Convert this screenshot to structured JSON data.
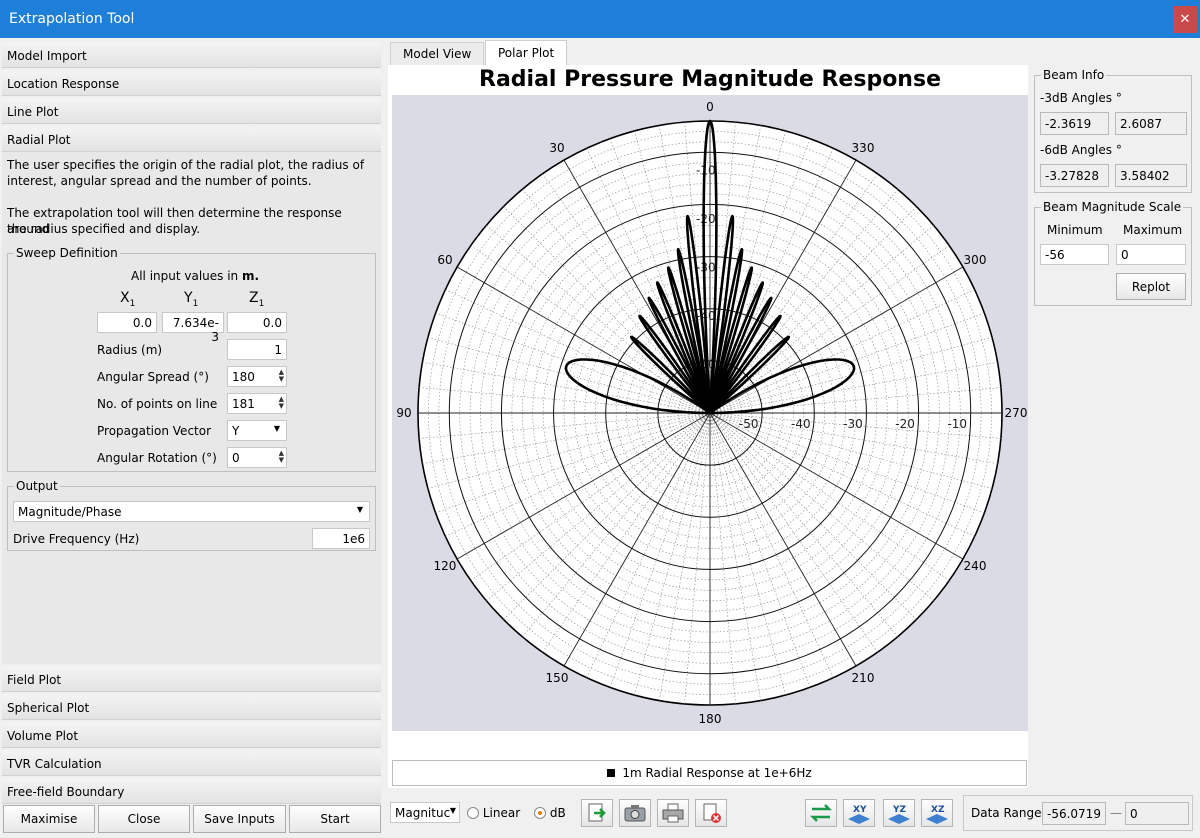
{
  "window": {
    "title": "Extrapolation Tool",
    "close_glyph": "✕"
  },
  "left": {
    "sections": [
      "Model Import",
      "Location Response",
      "Line Plot",
      "Radial Plot"
    ],
    "sections_bottom": [
      "Field Plot",
      "Spherical Plot",
      "Volume Plot",
      "TVR Calculation",
      "Free-field Boundary"
    ],
    "description_1a": "The user specifies the origin of the radial plot, the radius of",
    "description_1b": "interest, angular spread and the number of points.",
    "description_2a": "The extrapolation tool will then determine the response around",
    "description_2b": "the radius specified and display.",
    "sweep": {
      "legend": "Sweep Definition",
      "units_note_prefix": "All input values in ",
      "units_note_unit": "m.",
      "x_label": "X",
      "y_label": "Y",
      "z_label": "Z",
      "sub": "1",
      "x_value": "0.0",
      "y_value": "7.634e-3",
      "z_value": "0.0",
      "radius_label": "Radius (m)",
      "radius_value": "1",
      "spread_label": "Angular Spread (°)",
      "spread_value": "180",
      "points_label": "No. of points on line",
      "points_value": "181",
      "prop_label": "Propagation Vector",
      "prop_value": "Y",
      "rotation_label": "Angular Rotation (°)",
      "rotation_value": "0"
    },
    "output": {
      "legend": "Output",
      "mode_value": "Magnitude/Phase",
      "freq_label": "Drive Frequency (Hz)",
      "freq_value": "1e6"
    },
    "buttons": {
      "maximise": "Maximise",
      "close": "Close",
      "save": "Save Inputs",
      "start": "Start"
    }
  },
  "tabs": [
    "Model View",
    "Polar Plot"
  ],
  "active_tab": "Polar Plot",
  "chart_data": {
    "type": "polar-line",
    "title": "Radial Pressure Magnitude Response",
    "angle_ticks": [
      "0",
      "30",
      "60",
      "90",
      "120",
      "150",
      "180",
      "210",
      "240",
      "270",
      "300",
      "330"
    ],
    "radial_ticks_vertical": [
      "-10",
      "-20",
      "-30",
      "-40",
      "-50"
    ],
    "radial_ticks_horizontal": [
      "-50",
      "-40",
      "-30",
      "-20",
      "-10"
    ],
    "r_range_db": [
      -56,
      0
    ],
    "series_name": "1m Radial Response at 1e+6Hz",
    "series_color": "#000000",
    "background_color": "#dbdbe6",
    "lobes": [
      {
        "angle_center_deg": 0,
        "half_width_deg": 3.5,
        "peak_db": 0
      },
      {
        "angle_center_deg": 6.5,
        "half_width_deg": 2.2,
        "peak_db": -18
      },
      {
        "angle_center_deg": -6.5,
        "half_width_deg": 2.2,
        "peak_db": -18
      },
      {
        "angle_center_deg": 11,
        "half_width_deg": 2.0,
        "peak_db": -24
      },
      {
        "angle_center_deg": -11,
        "half_width_deg": 2.0,
        "peak_db": -24
      },
      {
        "angle_center_deg": 16,
        "half_width_deg": 2.0,
        "peak_db": -27
      },
      {
        "angle_center_deg": -16,
        "half_width_deg": 2.0,
        "peak_db": -27
      },
      {
        "angle_center_deg": 22,
        "half_width_deg": 2.2,
        "peak_db": -29
      },
      {
        "angle_center_deg": -22,
        "half_width_deg": 2.2,
        "peak_db": -29
      },
      {
        "angle_center_deg": 28,
        "half_width_deg": 2.4,
        "peak_db": -31
      },
      {
        "angle_center_deg": -28,
        "half_width_deg": 2.4,
        "peak_db": -31
      },
      {
        "angle_center_deg": 36,
        "half_width_deg": 2.6,
        "peak_db": -33
      },
      {
        "angle_center_deg": -36,
        "half_width_deg": 2.6,
        "peak_db": -33
      },
      {
        "angle_center_deg": 46,
        "half_width_deg": 3.0,
        "peak_db": -35
      },
      {
        "angle_center_deg": -46,
        "half_width_deg": 3.0,
        "peak_db": -35
      },
      {
        "angle_center_deg": 72,
        "half_width_deg": 18,
        "peak_db": -27
      },
      {
        "angle_center_deg": -72,
        "half_width_deg": 18,
        "peak_db": -27
      }
    ]
  },
  "bottom_toolbar": {
    "mode_value": "Magnituc",
    "linear_label": "Linear",
    "db_label": "dB",
    "db_selected": true,
    "icons": [
      "export-icon",
      "camera-icon",
      "print-icon",
      "clear-icon"
    ],
    "view_icons": [
      "swap-icon",
      "xy-view-icon",
      "yz-view-icon",
      "xz-view-icon"
    ],
    "xy": "XY",
    "yz": "YZ",
    "xz": "XZ",
    "data_range_label": "Data Range",
    "data_range_min": "-56.0719",
    "data_range_sep": "—",
    "data_range_max": "0"
  },
  "beam_info": {
    "legend": "Beam Info",
    "db3_label": "-3dB Angles °",
    "db3_a": "-2.3619",
    "db3_b": "2.6087",
    "db6_label": "-6dB Angles °",
    "db6_a": "-3.27828",
    "db6_b": "3.58402"
  },
  "beam_scale": {
    "legend": "Beam Magnitude Scale",
    "min_label": "Minimum",
    "max_label": "Maximum",
    "min_value": "-56",
    "max_value": "0",
    "replot_label": "Replot"
  }
}
